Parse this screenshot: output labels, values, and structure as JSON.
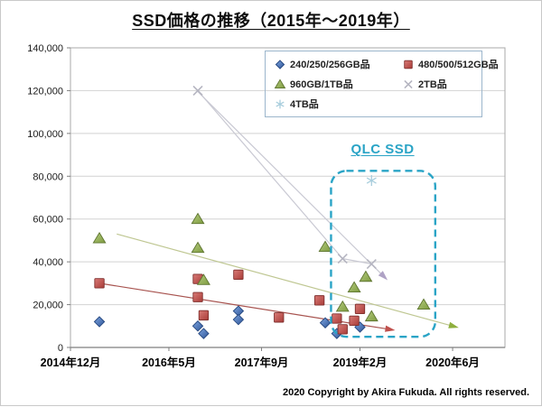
{
  "page": {
    "title": "SSD価格の推移（2015年～2019年）",
    "copyright": "2020 Copyright by Akira Fukuda. All rights reserved."
  },
  "annotation": {
    "qlc_label": "QLC SSD",
    "color": "#2aa4c6"
  },
  "chart_data": {
    "type": "scatter",
    "title": "SSD価格の推移（2015年～2019年）",
    "xlabel": "",
    "ylabel": "",
    "grid": true,
    "legend_position": "top-right-inside",
    "y_axis": {
      "min": 0,
      "max": 140000,
      "ticks": [
        {
          "value": 0,
          "label": "0"
        },
        {
          "value": 20000,
          "label": "20,000"
        },
        {
          "value": 40000,
          "label": "40,000"
        },
        {
          "value": 60000,
          "label": "60,000"
        },
        {
          "value": 80000,
          "label": "80,000"
        },
        {
          "value": 100000,
          "label": "100,000"
        },
        {
          "value": 120000,
          "label": "120,000"
        },
        {
          "value": 140000,
          "label": "140,000"
        }
      ]
    },
    "x_axis": {
      "min_date": "2014-12",
      "max_date": "2021-03",
      "ticks": [
        {
          "label": "2014年12月",
          "date": "2014-12"
        },
        {
          "label": "2016年5月",
          "date": "2016-05"
        },
        {
          "label": "2017年9月",
          "date": "2017-09"
        },
        {
          "label": "2019年2月",
          "date": "2019-02"
        },
        {
          "label": "2020年6月",
          "date": "2020-06"
        }
      ]
    },
    "series": [
      {
        "key": "240-250-256gb",
        "name": "240/250/256GB品",
        "marker": "diamond",
        "color": "#4472c4",
        "points": [
          [
            "2015-05",
            12000
          ],
          [
            "2016-10",
            10000
          ],
          [
            "2016-11",
            6500
          ],
          [
            "2017-05",
            17000
          ],
          [
            "2017-05",
            13000
          ],
          [
            "2018-08",
            11500
          ],
          [
            "2018-10",
            6500
          ],
          [
            "2019-02",
            9500
          ]
        ]
      },
      {
        "key": "480-500-512gb",
        "name": "480/500/512GB品",
        "marker": "square",
        "color": "#c0504d",
        "points": [
          [
            "2015-05",
            30000
          ],
          [
            "2016-10",
            32000
          ],
          [
            "2016-10",
            23500
          ],
          [
            "2016-11",
            15000
          ],
          [
            "2017-05",
            34000
          ],
          [
            "2017-12",
            14000
          ],
          [
            "2018-07",
            22000
          ],
          [
            "2018-10",
            13500
          ],
          [
            "2018-11",
            8500
          ],
          [
            "2019-01",
            12500
          ],
          [
            "2019-02",
            18000
          ]
        ]
      },
      {
        "key": "960gb-1tb",
        "name": "960GB/1TB品",
        "marker": "triangle",
        "color": "#9bbb59",
        "points": [
          [
            "2015-05",
            51000
          ],
          [
            "2016-10",
            60000
          ],
          [
            "2016-10",
            46500
          ],
          [
            "2016-11",
            31500
          ],
          [
            "2018-08",
            47000
          ],
          [
            "2018-11",
            19000
          ],
          [
            "2019-01",
            28000
          ],
          [
            "2019-03",
            33000
          ],
          [
            "2019-04",
            14500
          ],
          [
            "2020-01",
            20000
          ]
        ]
      },
      {
        "key": "2tb",
        "name": "2TB品",
        "marker": "x",
        "color": "#b5b5c1",
        "points": [
          [
            "2016-10",
            120000
          ],
          [
            "2018-11",
            41500
          ],
          [
            "2019-04",
            39000
          ]
        ]
      },
      {
        "key": "4tb",
        "name": "4TB品",
        "marker": "asterisk",
        "color": "#a9cedd",
        "points": [
          [
            "2019-04",
            78000
          ]
        ]
      }
    ],
    "connector": {
      "name": "2TB品 series line",
      "color": "#c9c9d3",
      "points": [
        [
          "2016-10",
          120000
        ],
        [
          "2018-11",
          41500
        ],
        [
          "2019-04",
          39000
        ]
      ]
    },
    "trendlines": [
      {
        "name": "480/500/512GB品 trend",
        "color": "#a85450",
        "arrow_color": "#c0504d",
        "from": [
          "2015-05",
          30000
        ],
        "to": [
          "2019-07",
          8500
        ]
      },
      {
        "name": "960GB/1TB品 trend",
        "color": "#bfc792",
        "arrow_color": "#8faf3e",
        "from": [
          "2015-08",
          53000
        ],
        "to": [
          "2020-06",
          10000
        ]
      },
      {
        "name": "2TB品 trend",
        "color": "#c9c9d3",
        "arrow_color": "#afa2c5",
        "from": [
          "2016-10",
          119500
        ],
        "to": [
          "2019-06",
          33500
        ]
      }
    ],
    "annotation_box": {
      "label": "QLC SSD",
      "color": "#2aa4c6",
      "x_from": "2018-09",
      "x_to": "2020-03",
      "y_from": 5000,
      "y_to": 82500
    }
  }
}
